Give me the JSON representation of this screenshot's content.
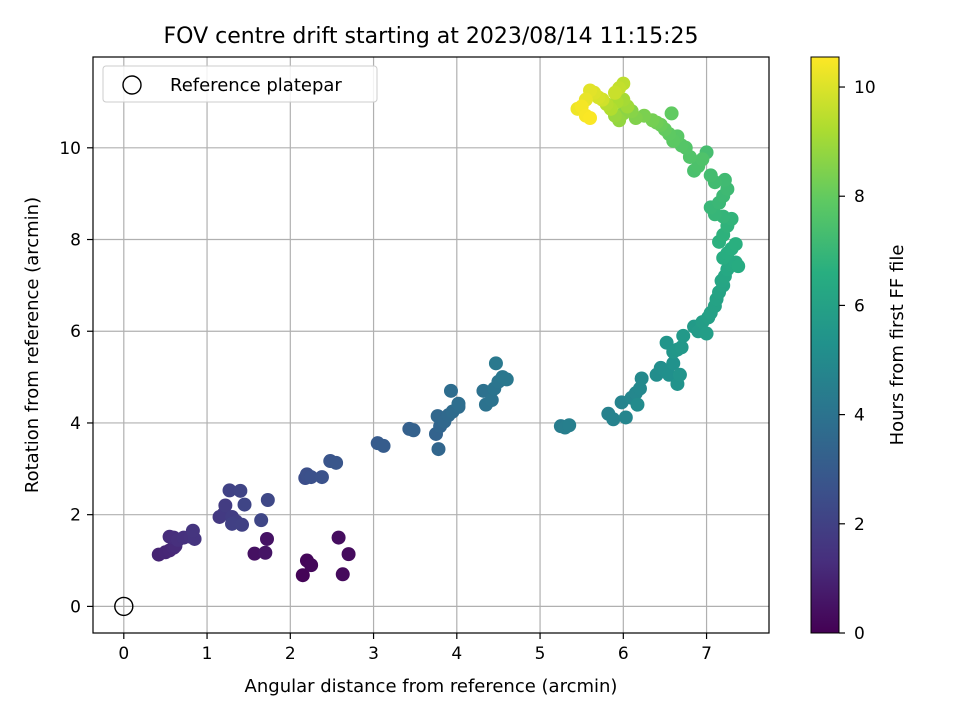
{
  "chart_data": {
    "type": "scatter",
    "title": "FOV centre drift starting at 2023/08/14 11:15:25",
    "xlabel": "Angular distance from reference (arcmin)",
    "ylabel": "Rotation from reference (arcmin)",
    "xlim": [
      -0.37,
      7.75
    ],
    "ylim": [
      -0.58,
      11.98
    ],
    "xticks": [
      0,
      1,
      2,
      3,
      4,
      5,
      6,
      7
    ],
    "yticks": [
      0,
      2,
      4,
      6,
      8,
      10
    ],
    "grid": true,
    "legend": {
      "entries": [
        "Reference platepar"
      ],
      "placement": "top-left"
    },
    "reference_point": {
      "x": 0,
      "y": 0,
      "label": "Reference platepar"
    },
    "colorbar": {
      "label": "Hours from first FF file",
      "colormap": "viridis",
      "range": [
        0,
        10.55
      ],
      "ticks": [
        0,
        2,
        4,
        6,
        8,
        10
      ]
    },
    "points": [
      [
        2.15,
        0.68,
        0.1
      ],
      [
        2.2,
        1.0,
        0.15
      ],
      [
        2.25,
        0.9,
        0.2
      ],
      [
        2.63,
        0.7,
        0.25
      ],
      [
        2.7,
        1.14,
        0.3
      ],
      [
        2.58,
        1.5,
        0.35
      ],
      [
        1.57,
        1.15,
        0.45
      ],
      [
        1.72,
        1.47,
        0.5
      ],
      [
        1.7,
        1.17,
        0.55
      ],
      [
        0.42,
        1.13,
        1.0
      ],
      [
        0.5,
        1.18,
        1.05
      ],
      [
        0.55,
        1.22,
        1.1
      ],
      [
        0.6,
        1.28,
        1.15
      ],
      [
        0.62,
        1.32,
        1.2
      ],
      [
        0.55,
        1.52,
        1.25
      ],
      [
        0.6,
        1.5,
        1.3
      ],
      [
        0.65,
        1.45,
        1.35
      ],
      [
        0.72,
        1.5,
        1.4
      ],
      [
        0.8,
        1.52,
        1.45
      ],
      [
        0.85,
        1.47,
        1.5
      ],
      [
        0.83,
        1.65,
        1.55
      ],
      [
        1.15,
        1.95,
        1.7
      ],
      [
        1.2,
        2.02,
        1.75
      ],
      [
        1.22,
        2.2,
        1.8
      ],
      [
        1.3,
        1.95,
        1.85
      ],
      [
        1.35,
        1.85,
        1.9
      ],
      [
        1.3,
        1.8,
        1.95
      ],
      [
        1.42,
        1.78,
        2.0
      ],
      [
        1.27,
        2.53,
        2.05
      ],
      [
        1.4,
        2.52,
        2.1
      ],
      [
        1.45,
        2.22,
        2.15
      ],
      [
        1.65,
        1.88,
        2.2
      ],
      [
        1.73,
        2.32,
        2.25
      ],
      [
        2.18,
        2.8,
        2.5
      ],
      [
        2.2,
        2.88,
        2.55
      ],
      [
        2.25,
        2.82,
        2.6
      ],
      [
        2.38,
        2.82,
        2.65
      ],
      [
        2.48,
        3.17,
        2.75
      ],
      [
        2.55,
        3.13,
        2.8
      ],
      [
        3.05,
        3.56,
        3.0
      ],
      [
        3.12,
        3.5,
        3.05
      ],
      [
        3.43,
        3.87,
        3.2
      ],
      [
        3.48,
        3.84,
        3.25
      ],
      [
        3.75,
        3.76,
        3.35
      ],
      [
        3.8,
        3.93,
        3.4
      ],
      [
        3.78,
        3.43,
        3.45
      ],
      [
        3.77,
        4.15,
        3.5
      ],
      [
        3.85,
        4.03,
        3.55
      ],
      [
        3.9,
        4.17,
        3.6
      ],
      [
        3.95,
        4.25,
        3.65
      ],
      [
        4.02,
        4.35,
        3.7
      ],
      [
        3.93,
        4.7,
        3.75
      ],
      [
        4.02,
        4.42,
        3.8
      ],
      [
        4.32,
        4.7,
        3.9
      ],
      [
        4.35,
        4.4,
        3.95
      ],
      [
        4.42,
        4.5,
        4.0
      ],
      [
        4.45,
        4.75,
        4.05
      ],
      [
        4.5,
        4.9,
        4.1
      ],
      [
        4.55,
        5.0,
        4.15
      ],
      [
        4.6,
        4.95,
        4.2
      ],
      [
        4.47,
        5.3,
        4.25
      ],
      [
        5.25,
        3.93,
        4.4
      ],
      [
        5.3,
        3.9,
        4.45
      ],
      [
        5.35,
        3.95,
        4.5
      ],
      [
        5.82,
        4.2,
        4.6
      ],
      [
        5.88,
        4.08,
        4.65
      ],
      [
        5.98,
        4.45,
        4.7
      ],
      [
        6.03,
        4.12,
        4.75
      ],
      [
        6.1,
        4.55,
        4.8
      ],
      [
        6.15,
        4.65,
        4.85
      ],
      [
        6.2,
        4.75,
        4.9
      ],
      [
        6.22,
        4.97,
        4.95
      ],
      [
        6.17,
        4.4,
        5.0
      ],
      [
        6.4,
        5.05,
        5.1
      ],
      [
        6.45,
        5.2,
        5.15
      ],
      [
        6.5,
        5.15,
        5.2
      ],
      [
        6.55,
        5.05,
        5.25
      ],
      [
        6.6,
        5.3,
        5.3
      ],
      [
        6.65,
        4.85,
        5.35
      ],
      [
        6.68,
        5.05,
        5.4
      ],
      [
        6.52,
        5.75,
        5.45
      ],
      [
        6.6,
        5.55,
        5.5
      ],
      [
        6.65,
        5.6,
        5.55
      ],
      [
        6.7,
        5.65,
        5.6
      ],
      [
        6.72,
        5.9,
        5.65
      ],
      [
        6.85,
        6.1,
        5.7
      ],
      [
        6.9,
        6.0,
        5.75
      ],
      [
        6.95,
        6.2,
        5.8
      ],
      [
        7.0,
        5.95,
        5.85
      ],
      [
        7.02,
        6.3,
        5.9
      ],
      [
        7.05,
        6.4,
        5.95
      ],
      [
        7.1,
        6.55,
        6.0
      ],
      [
        7.12,
        6.7,
        6.05
      ],
      [
        7.15,
        6.85,
        6.1
      ],
      [
        7.2,
        7.0,
        6.15
      ],
      [
        7.18,
        7.1,
        6.2
      ],
      [
        7.22,
        7.2,
        6.25
      ],
      [
        7.25,
        7.35,
        6.3
      ],
      [
        7.3,
        7.45,
        6.35
      ],
      [
        7.35,
        7.5,
        6.4
      ],
      [
        7.38,
        7.42,
        6.45
      ],
      [
        7.2,
        7.6,
        6.5
      ],
      [
        7.25,
        7.7,
        6.55
      ],
      [
        7.3,
        7.8,
        6.6
      ],
      [
        7.35,
        7.9,
        6.65
      ],
      [
        7.15,
        7.95,
        6.7
      ],
      [
        7.2,
        8.1,
        6.75
      ],
      [
        7.25,
        8.3,
        6.8
      ],
      [
        7.3,
        8.45,
        6.85
      ],
      [
        7.2,
        8.5,
        6.9
      ],
      [
        7.1,
        8.55,
        6.95
      ],
      [
        7.05,
        8.7,
        7.0
      ],
      [
        7.15,
        8.8,
        7.05
      ],
      [
        7.2,
        8.95,
        7.1
      ],
      [
        7.25,
        9.1,
        7.15
      ],
      [
        7.22,
        9.3,
        7.2
      ],
      [
        7.1,
        9.25,
        7.25
      ],
      [
        7.05,
        9.4,
        7.3
      ],
      [
        7.0,
        9.9,
        7.35
      ],
      [
        6.85,
        9.5,
        7.45
      ],
      [
        6.9,
        9.6,
        7.5
      ],
      [
        6.95,
        9.75,
        7.55
      ],
      [
        6.8,
        9.8,
        7.6
      ],
      [
        6.75,
        10.0,
        7.65
      ],
      [
        6.7,
        10.05,
        7.7
      ],
      [
        6.65,
        10.25,
        7.8
      ],
      [
        6.6,
        10.15,
        7.85
      ],
      [
        6.55,
        10.3,
        7.9
      ],
      [
        6.58,
        10.75,
        7.95
      ],
      [
        6.5,
        10.4,
        8.0
      ],
      [
        6.45,
        10.5,
        8.1
      ],
      [
        6.4,
        10.55,
        8.2
      ],
      [
        6.35,
        10.6,
        8.3
      ],
      [
        6.25,
        10.7,
        8.4
      ],
      [
        6.15,
        10.65,
        8.5
      ],
      [
        6.1,
        10.8,
        8.6
      ],
      [
        6.0,
        10.75,
        8.7
      ],
      [
        5.95,
        10.6,
        8.8
      ],
      [
        5.9,
        10.7,
        8.9
      ],
      [
        6.05,
        10.9,
        9.0
      ],
      [
        6.0,
        11.05,
        9.1
      ],
      [
        5.92,
        11.0,
        9.2
      ],
      [
        5.85,
        10.85,
        9.3
      ],
      [
        5.8,
        10.95,
        9.4
      ],
      [
        6.0,
        11.4,
        9.5
      ],
      [
        5.95,
        11.3,
        9.6
      ],
      [
        5.9,
        11.2,
        9.7
      ],
      [
        5.75,
        11.05,
        9.8
      ],
      [
        5.7,
        11.1,
        9.9
      ],
      [
        5.65,
        11.2,
        10.0
      ],
      [
        5.6,
        11.25,
        10.1
      ],
      [
        5.55,
        11.05,
        10.2
      ],
      [
        5.45,
        10.85,
        10.3
      ],
      [
        5.5,
        10.9,
        10.4
      ],
      [
        5.55,
        10.7,
        10.45
      ],
      [
        5.6,
        10.65,
        10.5
      ]
    ]
  }
}
